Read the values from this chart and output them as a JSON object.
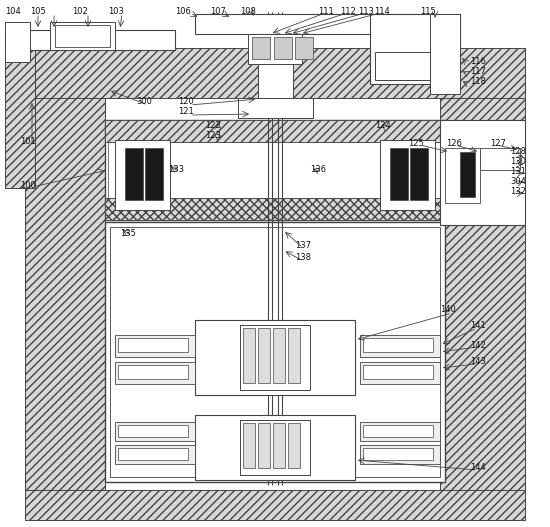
{
  "bg_color": "#ffffff",
  "lc": "#444444",
  "fc_hatch": "#e8e8e8",
  "fc_white": "#ffffff",
  "fc_dark": "#1a1a1a",
  "figsize": [
    5.5,
    5.27
  ],
  "dpi": 100
}
